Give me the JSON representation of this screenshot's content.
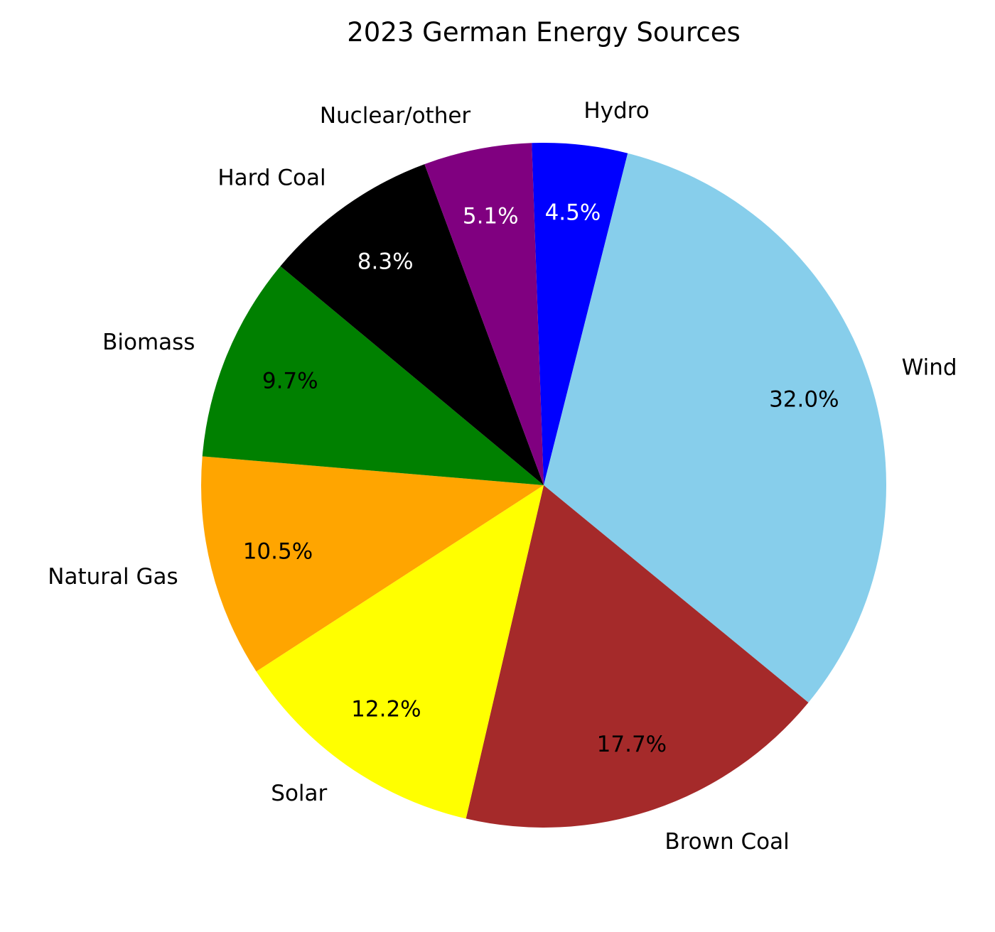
{
  "chart_data": {
    "type": "pie",
    "title": "2023 German Energy Sources",
    "start_angle_deg": 92,
    "direction": "clockwise",
    "slices": [
      {
        "label": "Hydro",
        "value": 4.5,
        "pct_text": "4.5%",
        "color": "#0000ff",
        "pct_color": "#ffffff"
      },
      {
        "label": "Wind",
        "value": 32.0,
        "pct_text": "32.0%",
        "color": "#87ceeb",
        "pct_color": "#000000"
      },
      {
        "label": "Brown Coal",
        "value": 17.7,
        "pct_text": "17.7%",
        "color": "#a52a2a",
        "pct_color": "#000000"
      },
      {
        "label": "Solar",
        "value": 12.2,
        "pct_text": "12.2%",
        "color": "#ffff00",
        "pct_color": "#000000"
      },
      {
        "label": "Natural Gas",
        "value": 10.5,
        "pct_text": "10.5%",
        "color": "#ffa500",
        "pct_color": "#000000"
      },
      {
        "label": "Biomass",
        "value": 9.7,
        "pct_text": "9.7%",
        "color": "#008000",
        "pct_color": "#000000"
      },
      {
        "label": "Hard Coal",
        "value": 8.3,
        "pct_text": "8.3%",
        "color": "#000000",
        "pct_color": "#ffffff"
      },
      {
        "label": "Nuclear/other",
        "value": 5.1,
        "pct_text": "5.1%",
        "color": "#800080",
        "pct_color": "#ffffff"
      }
    ]
  }
}
